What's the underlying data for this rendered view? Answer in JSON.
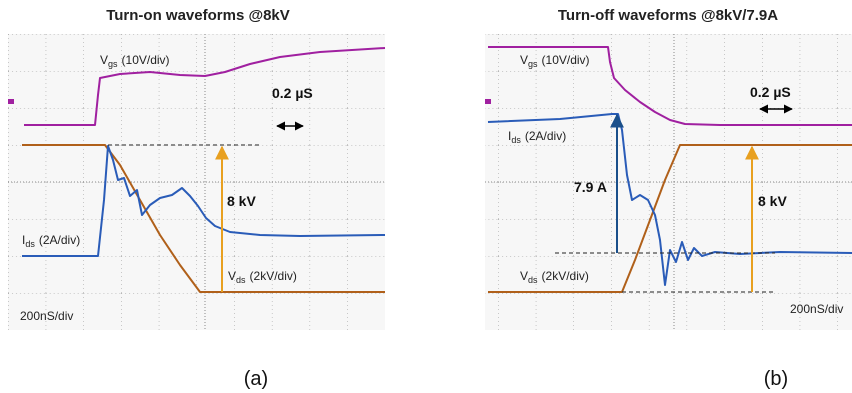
{
  "panels": [
    {
      "title": "Turn-on waveforms @8kV",
      "vgs": {
        "symbol": "V",
        "sub": "gs",
        "scale": "(10V/div)"
      },
      "ids": {
        "symbol": "I",
        "sub": "ds",
        "scale": "(2A/div)"
      },
      "vds": {
        "symbol": "V",
        "sub": "ds",
        "scale": "(2kV/div)"
      },
      "time_marker": "0.2 µS",
      "voltage_label": "8 kV",
      "timebase": "200nS/div",
      "caption": "(a)"
    },
    {
      "title": "Turn-off waveforms @8kV/7.9A",
      "vgs": {
        "symbol": "V",
        "sub": "gs",
        "scale": "(10V/div)"
      },
      "ids": {
        "symbol": "I",
        "sub": "ds",
        "scale": "(2A/div)"
      },
      "vds": {
        "symbol": "V",
        "sub": "ds",
        "scale": "(2kV/div)"
      },
      "time_marker": "0.2 µS",
      "current_label": "7.9 A",
      "voltage_label": "8 kV",
      "timebase": "200nS/div",
      "caption": "(b)"
    }
  ]
}
